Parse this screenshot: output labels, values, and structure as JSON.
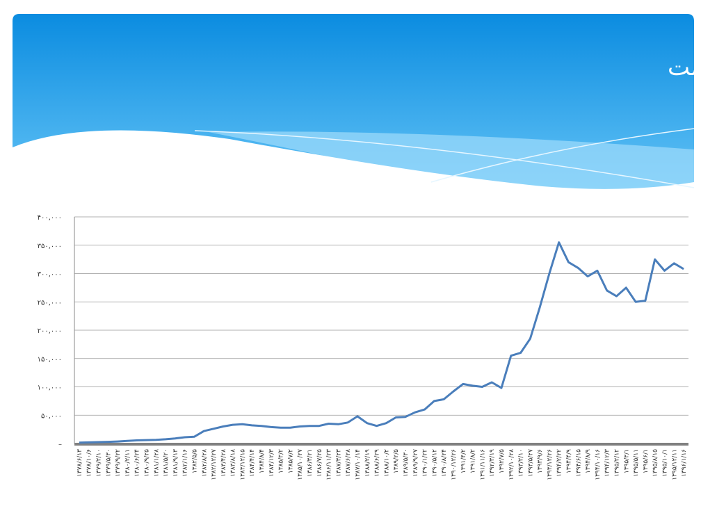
{
  "chart_data": {
    "type": "line",
    "title": "روند شاخص بازده نقدی و قیمت",
    "categories": [
      "۱۳۷۸/۶/۱۳",
      "۱۳۷۸/۱۰/۶",
      "۱۳۷۹/۲/۱۰",
      "۱۳۷۹/۵/۳۰",
      "۱۳۷۹/۹/۲۲",
      "۱۳۸۰/۲/۱۱",
      "۱۳۸۰/۶/۲۴",
      "۱۳۸۰/۹/۲۵",
      "۱۳۸۱/۱/۲۸",
      "۱۳۸۱/۵/۲۰",
      "۱۳۸۱/۹/۱۳",
      "۱۳۸۲/۱/۱۶",
      "۱۳۸۲/۵/۵",
      "۱۳۸۲/۸/۲۸",
      "۱۳۸۲/۱۲/۲۷",
      "۱۳۸۳/۴/۲۸",
      "۱۳۸۳/۸/۱۸",
      "۱۳۸۳/۱۲/۱۵",
      "۱۳۸۴/۴/۱۴",
      "۱۳۸۴/۸/۴",
      "۱۳۸۴/۱۲/۳",
      "۱۳۸۵/۳/۲",
      "۱۳۸۵/۷/۲",
      "۱۳۸۵/۱۰/۲۷",
      "۱۳۸۶/۳/۲۱",
      "۱۳۸۶/۷/۲۵",
      "۱۳۸۶/۱۱/۲۳",
      "۱۳۸۷/۳/۲۳",
      "۱۳۸۷/۶/۲۸",
      "۱۳۸۷/۱۰/۱۴",
      "۱۳۸۸/۲/۱۹",
      "۱۳۸۸/۶/۲۹",
      "۱۳۸۸/۱۰/۲",
      "۱۳۸۹/۲/۵",
      "۱۳۸۹/۵/۳۰",
      "۱۳۸۹/۹/۲۷",
      "۱۳۹۰/۱/۲۲",
      "۱۳۹۰/۵/۱۲",
      "۱۳۹۰/۸/۲۴",
      "۱۳۹۰/۱۲/۲۶",
      "۱۳۹۱/۴/۲",
      "۱۳۹۱/۸/۲",
      "۱۳۹۱/۱۱/۱۶",
      "۱۳۹۲/۳/۱۹",
      "۱۳۹۲/۷/۵",
      "۱۳۹۲/۱۰/۲۸",
      "۱۳۹۳/۲/۱۰",
      "۱۳۹۳/۵/۲۷",
      "۱۳۹۳/۹/۶",
      "۱۳۹۳/۱۲/۲۶",
      "۱۳۹۴/۲/۲۲",
      "۱۳۹۴/۴/۹",
      "۱۳۹۴/۶/۱۵",
      "۱۳۹۴/۸/۹",
      "۱۳۹۴/۱۰/۱۶",
      "۱۳۹۴/۱۲/۳",
      "۱۳۹۵/۲/۱۲",
      "۱۳۹۵/۳/۱",
      "۱۳۹۵/۵/۱۱",
      "۱۳۹۵/۶/۱",
      "۱۳۹۵/۸/۱۵",
      "۱۳۹۵/۱۰/۱",
      "۱۳۹۵/۱۲/۱۱",
      "۱۳۹۶/۱/۱۶"
    ],
    "series": [
      {
        "color": "#4a7ebb",
        "values": [
          1500,
          2000,
          2500,
          3000,
          3500,
          4500,
          5500,
          6000,
          6500,
          7500,
          9000,
          11000,
          12000,
          22000,
          26000,
          30000,
          33000,
          34000,
          32000,
          31000,
          29000,
          28000,
          28000,
          30000,
          31000,
          31000,
          35000,
          34000,
          37000,
          48000,
          36000,
          31000,
          36000,
          46000,
          47000,
          55000,
          60000,
          75000,
          78000,
          92000,
          105000,
          102000,
          100000,
          108000,
          98000,
          155000,
          160000,
          185000,
          240000,
          300000,
          355000,
          320000,
          310000,
          295000,
          305000,
          270000,
          260000,
          275000,
          250000,
          252000,
          325000,
          305000,
          318000,
          308000
        ]
      }
    ],
    "ylim": [
      0,
      400000
    ],
    "yticks": [
      {
        "value": 0,
        "label": "–"
      },
      {
        "value": 50000,
        "label": "۵۰,۰۰۰"
      },
      {
        "value": 100000,
        "label": "۱۰۰,۰۰۰"
      },
      {
        "value": 150000,
        "label": "۱۵۰,۰۰۰"
      },
      {
        "value": 200000,
        "label": "۲۰۰,۰۰۰"
      },
      {
        "value": 250000,
        "label": "۲۵۰,۰۰۰"
      },
      {
        "value": 300000,
        "label": "۳۰۰,۰۰۰"
      },
      {
        "value": 350000,
        "label": "۳۵۰,۰۰۰"
      },
      {
        "value": 400000,
        "label": "۴۰۰,۰۰۰"
      }
    ],
    "grid": true
  }
}
